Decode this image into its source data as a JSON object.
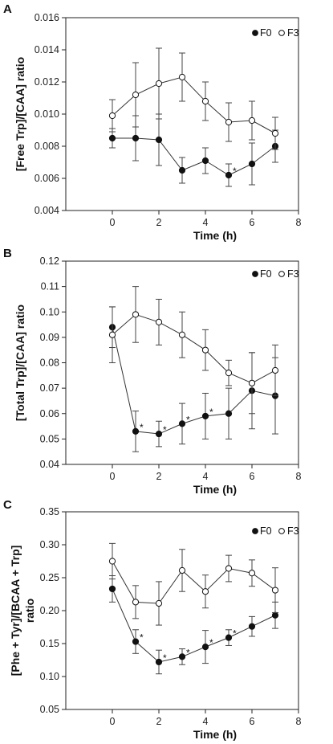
{
  "chart_data": [
    {
      "type": "line",
      "panel_label": "A",
      "xlabel": "Time (h)",
      "ylabel": "[Free Trp]/[CAA] ratio",
      "ylabel_line2": "",
      "xlim": [
        -2,
        8
      ],
      "ylim": [
        0.004,
        0.016
      ],
      "xticks": [
        0,
        2,
        4,
        6,
        8
      ],
      "yticks": [
        "0.004",
        "0.006",
        "0.008",
        "0.010",
        "0.012",
        "0.014",
        "0.016"
      ],
      "legend": [
        "F0",
        "F3"
      ],
      "grid": false,
      "series": [
        {
          "name": "F0",
          "marker": "filled",
          "x": [
            0,
            1,
            2,
            3,
            4,
            5,
            6,
            7
          ],
          "y": [
            0.0085,
            0.0085,
            0.0084,
            0.0065,
            0.0071,
            0.0062,
            0.0069,
            0.008
          ],
          "err": [
            0.0006,
            0.0014,
            0.0016,
            0.0008,
            0.0008,
            0.0007,
            0.0013,
            0.001
          ]
        },
        {
          "name": "F3",
          "marker": "open",
          "x": [
            0,
            1,
            2,
            3,
            4,
            5,
            6,
            7
          ],
          "y": [
            0.0099,
            0.0112,
            0.0119,
            0.0123,
            0.0108,
            0.0095,
            0.0096,
            0.0088
          ],
          "err": [
            0.001,
            0.002,
            0.0022,
            0.0015,
            0.0012,
            0.0012,
            0.0012,
            0.001
          ]
        }
      ],
      "significance": [
        {
          "x": 5,
          "y": 0.0062
        }
      ]
    },
    {
      "type": "line",
      "panel_label": "B",
      "xlabel": "Time (h)",
      "ylabel": "[Total Trp]/[CAA] ratio",
      "ylabel_line2": "",
      "xlim": [
        -2,
        8
      ],
      "ylim": [
        0.04,
        0.12
      ],
      "xticks": [
        0,
        2,
        4,
        6,
        8
      ],
      "yticks": [
        "0.04",
        "0.05",
        "0.06",
        "0.07",
        "0.08",
        "0.09",
        "0.10",
        "0.11",
        "0.12"
      ],
      "legend": [
        "F0",
        "F3"
      ],
      "grid": false,
      "series": [
        {
          "name": "F0",
          "marker": "filled",
          "x": [
            0,
            1,
            2,
            3,
            4,
            5,
            6,
            7
          ],
          "y": [
            0.094,
            0.053,
            0.052,
            0.056,
            0.059,
            0.06,
            0.069,
            0.067
          ],
          "err": [
            0.008,
            0.008,
            0.005,
            0.008,
            0.009,
            0.01,
            0.015,
            0.015
          ]
        },
        {
          "name": "F3",
          "marker": "open",
          "x": [
            0,
            1,
            2,
            3,
            4,
            5,
            6,
            7
          ],
          "y": [
            0.091,
            0.099,
            0.096,
            0.091,
            0.085,
            0.076,
            0.072,
            0.077
          ],
          "err": [
            0.011,
            0.011,
            0.009,
            0.009,
            0.008,
            0.005,
            0.012,
            0.01
          ]
        }
      ],
      "significance": [
        {
          "x": 1,
          "y": 0.053
        },
        {
          "x": 2,
          "y": 0.052
        },
        {
          "x": 3,
          "y": 0.056
        },
        {
          "x": 4,
          "y": 0.059
        }
      ]
    },
    {
      "type": "line",
      "panel_label": "C",
      "xlabel": "Time (h)",
      "ylabel": "[Phe + Tyr]/[BCAA + Trp]",
      "ylabel_line2": "ratio",
      "xlim": [
        -2,
        8
      ],
      "ylim": [
        0.05,
        0.35
      ],
      "xticks": [
        0,
        2,
        4,
        6,
        8
      ],
      "yticks": [
        "0.05",
        "0.10",
        "0.15",
        "0.20",
        "0.25",
        "0.30",
        "0.35"
      ],
      "legend": [
        "F0",
        "F3"
      ],
      "grid": false,
      "series": [
        {
          "name": "F0",
          "marker": "filled",
          "x": [
            0,
            1,
            2,
            3,
            4,
            5,
            6,
            7
          ],
          "y": [
            0.233,
            0.153,
            0.122,
            0.13,
            0.145,
            0.159,
            0.176,
            0.193
          ],
          "err": [
            0.02,
            0.018,
            0.018,
            0.012,
            0.025,
            0.012,
            0.015,
            0.02
          ]
        },
        {
          "name": "F3",
          "marker": "open",
          "x": [
            0,
            1,
            2,
            3,
            4,
            5,
            6,
            7
          ],
          "y": [
            0.275,
            0.213,
            0.211,
            0.261,
            0.229,
            0.264,
            0.257,
            0.231
          ],
          "err": [
            0.027,
            0.025,
            0.033,
            0.032,
            0.025,
            0.02,
            0.02,
            0.034
          ]
        }
      ],
      "significance": [
        {
          "x": 1,
          "y": 0.153
        },
        {
          "x": 2,
          "y": 0.122
        },
        {
          "x": 3,
          "y": 0.13
        },
        {
          "x": 4,
          "y": 0.145
        },
        {
          "x": 5,
          "y": 0.159
        }
      ]
    }
  ]
}
